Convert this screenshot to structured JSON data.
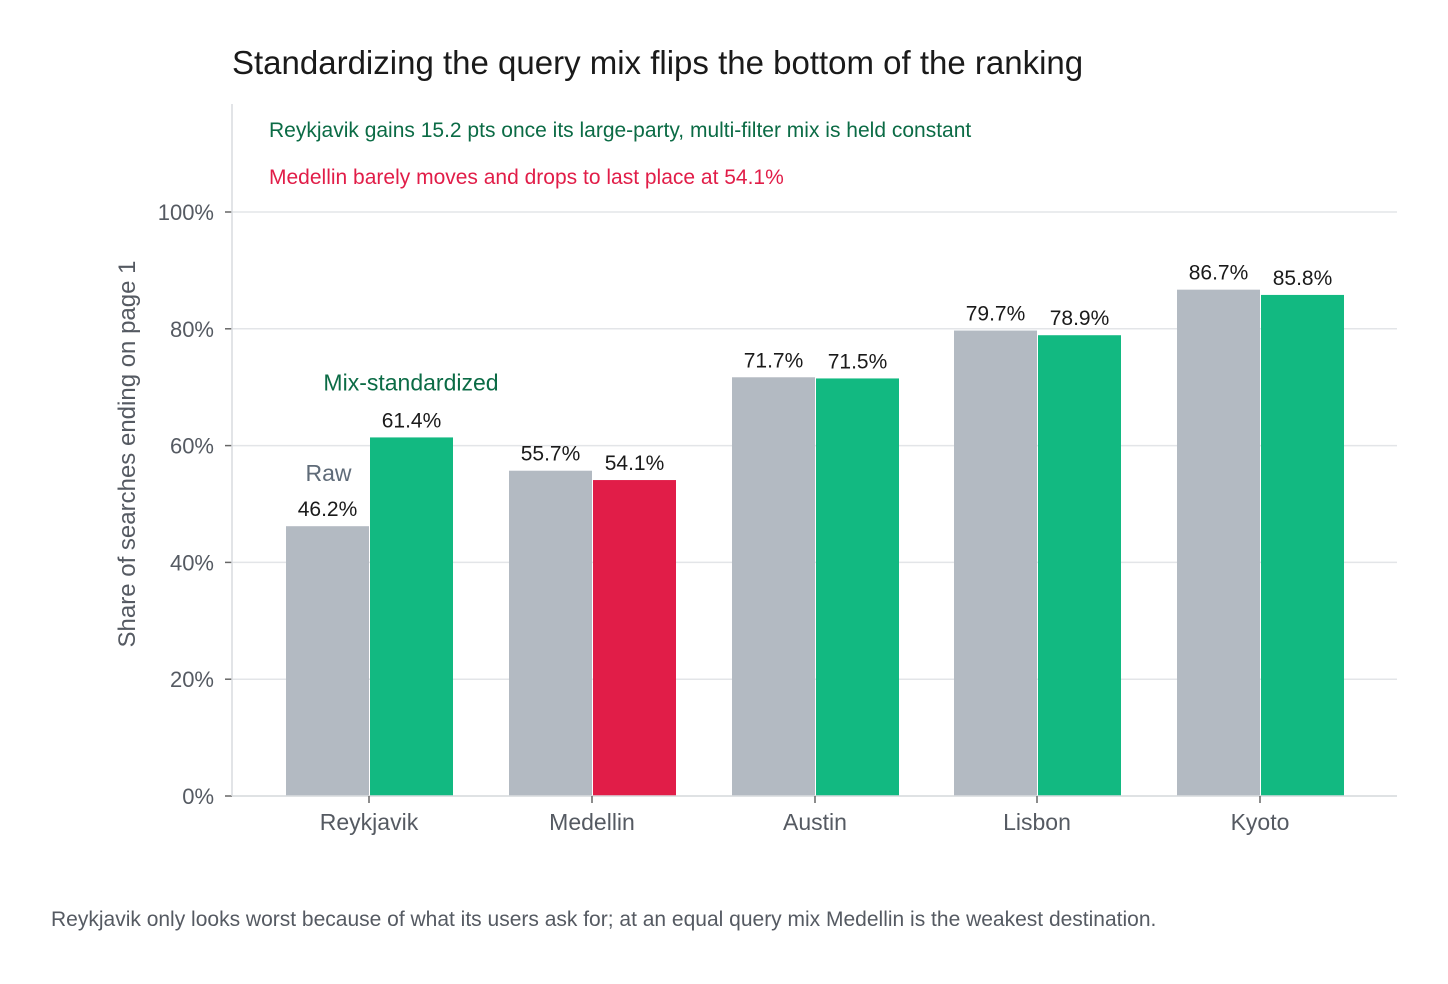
{
  "chart_data": {
    "type": "bar",
    "title": "Standardizing the query mix flips the bottom of the ranking",
    "ylabel": "Share of searches ending on page 1",
    "xlabel": "",
    "ylim": [
      0,
      100
    ],
    "yticks": [
      0,
      20,
      40,
      60,
      80,
      100
    ],
    "ytick_labels": [
      "0%",
      "20%",
      "40%",
      "60%",
      "80%",
      "100%"
    ],
    "categories": [
      "Reykjavik",
      "Medellin",
      "Austin",
      "Lisbon",
      "Kyoto"
    ],
    "series": [
      {
        "name": "Raw",
        "values": [
          46.2,
          55.7,
          71.7,
          79.7,
          86.7
        ],
        "color": "#b3bac2"
      },
      {
        "name": "Mix-standardized",
        "values": [
          61.4,
          54.1,
          71.5,
          78.9,
          85.8
        ],
        "color": "#12b981"
      }
    ],
    "data_labels": [
      [
        "46.2%",
        "55.7%",
        "71.7%",
        "79.7%",
        "86.7%"
      ],
      [
        "61.4%",
        "54.1%",
        "71.5%",
        "78.9%",
        "85.8%"
      ]
    ],
    "highlight": {
      "category": "Medellin",
      "series": "Mix-standardized",
      "color": "#e11d48"
    },
    "series_color_labels": {
      "Raw": "#5f6b78",
      "Mix-standardized": "#0b6b45"
    },
    "annotations": [
      {
        "text": "Reykjavik gains 15.2 pts once its large-party, multi-filter mix is held constant",
        "color": "#0b6b45"
      },
      {
        "text": "Medellin barely moves and drops to last place at 54.1%",
        "color": "#e11d48"
      }
    ],
    "grid": true,
    "legend": "inline labels above Reykjavik bars"
  },
  "footnote": "Reykjavik only looks worst because of what its users ask for; at an equal query mix Medellin is the weakest destination."
}
